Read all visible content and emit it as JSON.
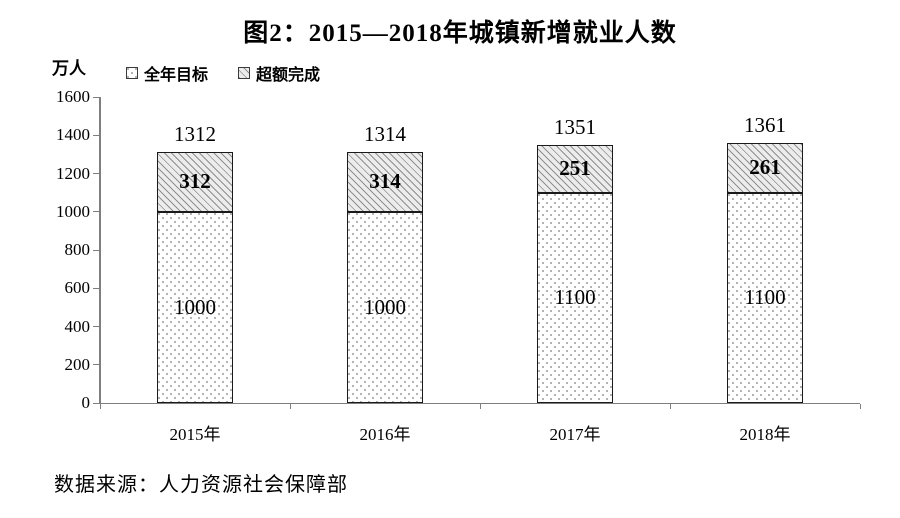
{
  "page": {
    "background": "#ffffff"
  },
  "chart_data": {
    "type": "bar",
    "stacked": true,
    "title": "图2：2015—2018年城镇新增就业人数",
    "unit_label": "万人",
    "categories": [
      "2015年",
      "2016年",
      "2017年",
      "2018年"
    ],
    "series": [
      {
        "name": "全年目标",
        "pattern": "dots",
        "values": [
          1000,
          1000,
          1100,
          1100
        ]
      },
      {
        "name": "超额完成",
        "pattern": "diagonal-hatch",
        "values": [
          312,
          314,
          251,
          261
        ]
      }
    ],
    "totals": [
      1312,
      1314,
      1351,
      1361
    ],
    "ylim": [
      0,
      1600
    ],
    "yticks": [
      0,
      200,
      400,
      600,
      800,
      1000,
      1200,
      1400,
      1600
    ],
    "grid": false,
    "legend_position": "top-left"
  },
  "source_note": "数据来源：人力资源社会保障部",
  "colors": {
    "text": "#000000",
    "axis": "#7f7f7f",
    "bar_border": "#1a1a1a",
    "hatch_bg": "#ececec",
    "hatch_line": "#8f8f8f",
    "dot_bg": "#ffffff",
    "dot_color": "#9a9a9a"
  }
}
